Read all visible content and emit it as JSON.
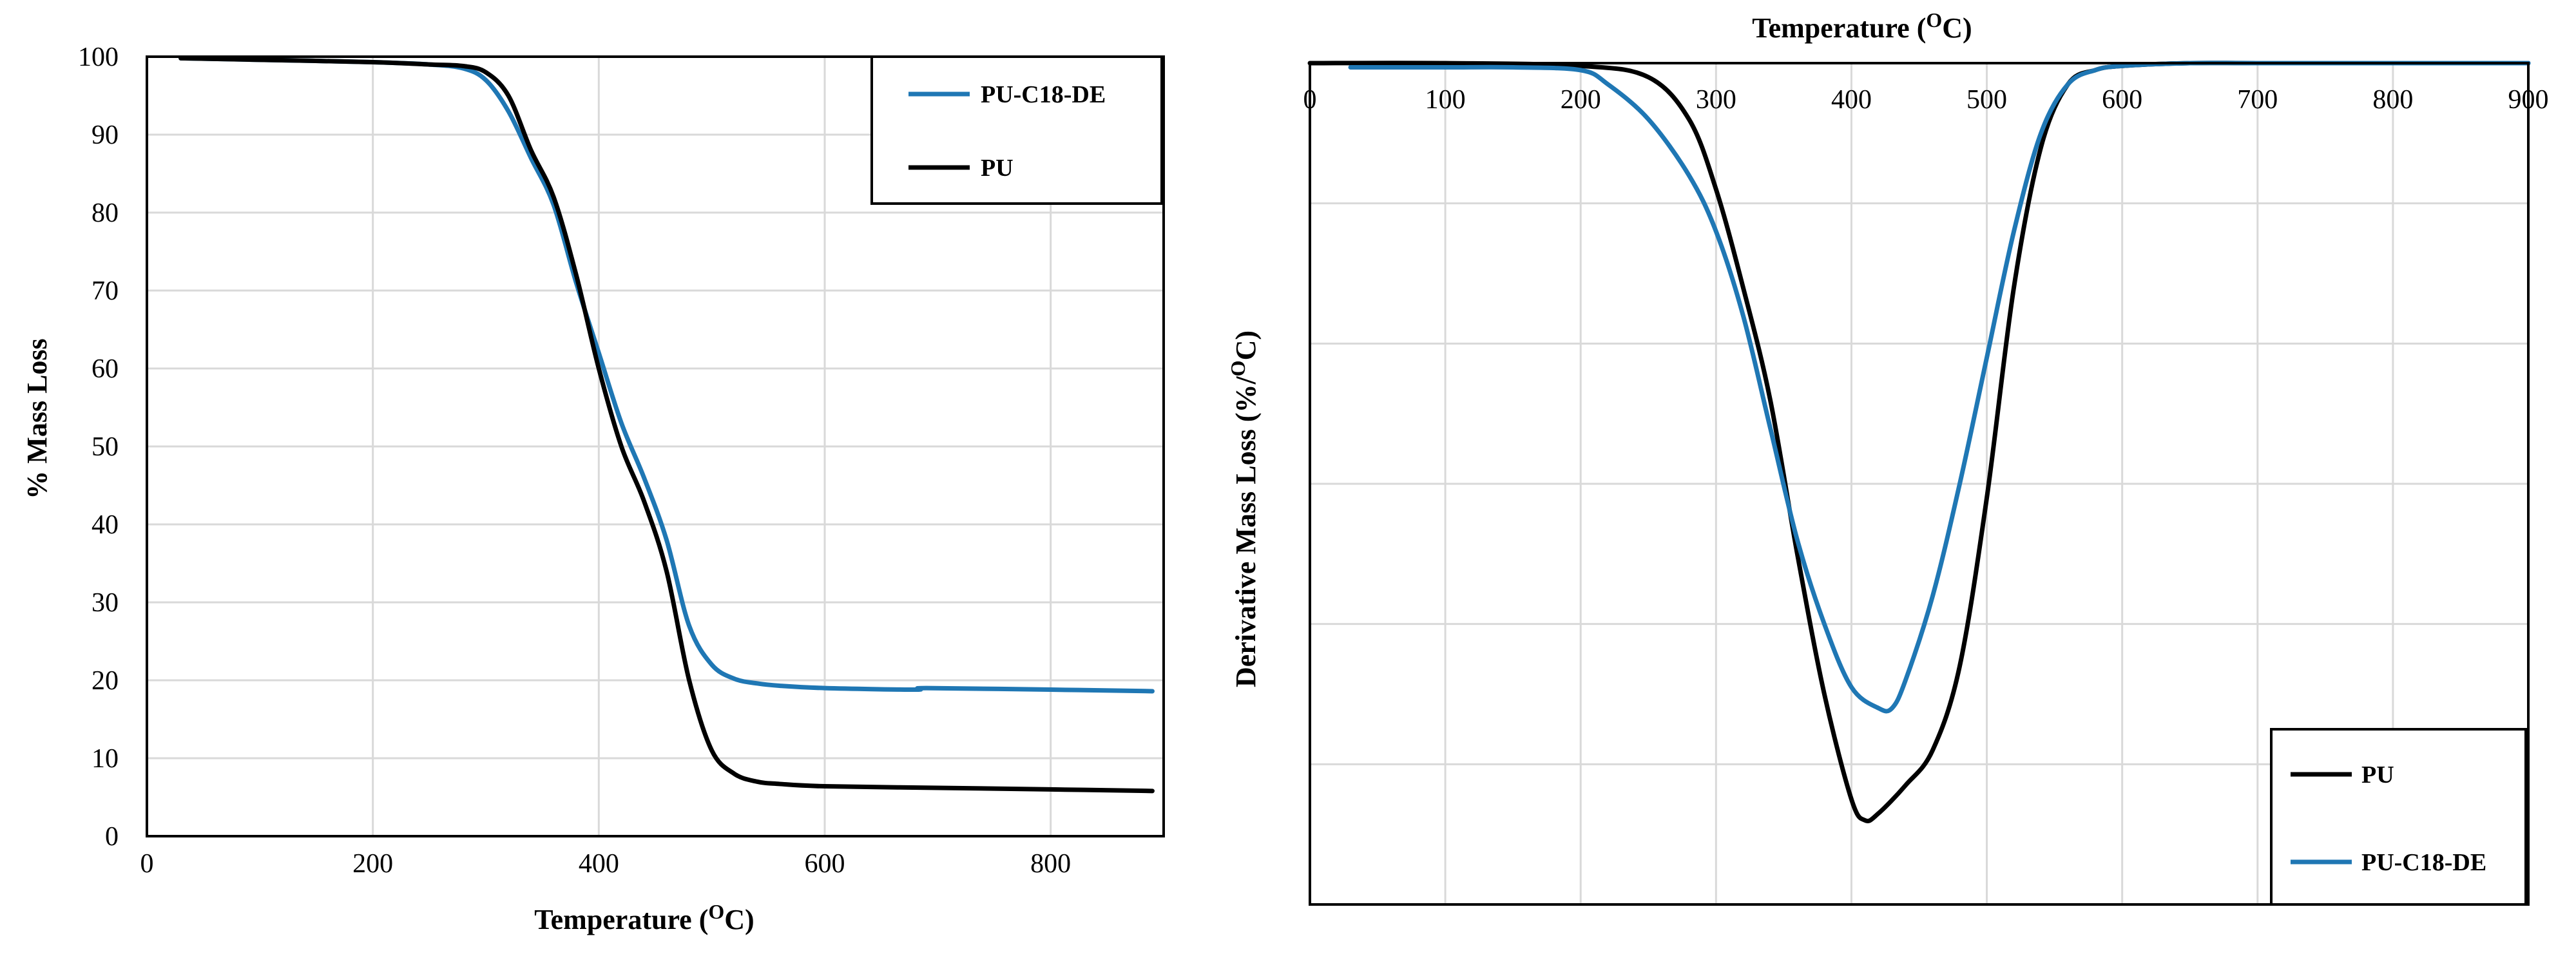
{
  "colors": {
    "pu": "#000000",
    "pu_c18_de": "#1f77b4"
  },
  "chart_data": [
    {
      "type": "line",
      "title": "",
      "xlabel": "Temperature (",
      "xlabel_sup": "O",
      "xlabel_end": "C)",
      "ylabel": "% Mass Loss",
      "xlim": [
        0,
        900
      ],
      "ylim": [
        0,
        100
      ],
      "xticks": [
        0,
        200,
        400,
        600,
        800
      ],
      "yticks": [
        0,
        10,
        20,
        30,
        40,
        50,
        60,
        70,
        80,
        90,
        100
      ],
      "grid": true,
      "legend_position": "top-right",
      "series": [
        {
          "name": "PU-C18-DE",
          "color": "#1f77b4",
          "x": [
            30,
            100,
            200,
            250,
            280,
            300,
            320,
            340,
            360,
            380,
            400,
            420,
            440,
            460,
            480,
            500,
            520,
            540,
            560,
            600,
            680,
            690,
            800,
            890
          ],
          "y": [
            99.8,
            99.6,
            99.3,
            99.0,
            98.5,
            97.0,
            93.0,
            87.0,
            81.0,
            71.0,
            62.0,
            53.0,
            46.0,
            38.0,
            27.0,
            22.0,
            20.2,
            19.6,
            19.3,
            19.0,
            18.8,
            19.0,
            18.8,
            18.6
          ]
        },
        {
          "name": "PU",
          "color": "#000000",
          "x": [
            30,
            100,
            200,
            250,
            280,
            300,
            320,
            340,
            360,
            380,
            400,
            420,
            440,
            460,
            480,
            500,
            520,
            540,
            560,
            600,
            700,
            800,
            890
          ],
          "y": [
            99.8,
            99.6,
            99.3,
            99.0,
            98.8,
            98.0,
            95.0,
            88.0,
            82.0,
            72.0,
            60.0,
            50.0,
            43.0,
            34.0,
            20.0,
            11.0,
            8.0,
            7.0,
            6.7,
            6.4,
            6.2,
            6.0,
            5.8
          ]
        }
      ]
    },
    {
      "type": "line",
      "title": "",
      "xlabel": "Temperature (",
      "xlabel_sup": "O",
      "xlabel_end": "C)",
      "ylabel": "Derivative Mass Loss (%/",
      "ylabel_sup": "O",
      "ylabel_end": "C)",
      "xlim": [
        0,
        900
      ],
      "ylim": [
        -6,
        0
      ],
      "xticks": [
        0,
        100,
        200,
        300,
        400,
        500,
        600,
        700,
        800,
        900
      ],
      "yticks": [
        0,
        -1,
        -2,
        -3,
        -4,
        -5,
        -6
      ],
      "ytick_labels_shown": false,
      "grid": true,
      "legend_position": "bottom-right",
      "series": [
        {
          "name": "PU",
          "color": "#000000",
          "x": [
            0,
            100,
            200,
            250,
            280,
            300,
            320,
            340,
            360,
            380,
            400,
            410,
            420,
            440,
            460,
            480,
            500,
            520,
            540,
            560,
            580,
            600,
            650,
            700,
            800,
            900
          ],
          "y": [
            0,
            0,
            -0.02,
            -0.1,
            -0.4,
            -0.9,
            -1.6,
            -2.4,
            -3.5,
            -4.5,
            -5.25,
            -5.4,
            -5.35,
            -5.15,
            -4.9,
            -4.3,
            -3.1,
            -1.6,
            -0.6,
            -0.15,
            -0.05,
            -0.02,
            0,
            0,
            0,
            0
          ]
        },
        {
          "name": "PU-C18-DE",
          "color": "#1f77b4",
          "x": [
            30,
            100,
            150,
            200,
            220,
            250,
            280,
            300,
            320,
            340,
            360,
            380,
            400,
            420,
            430,
            440,
            460,
            480,
            500,
            520,
            540,
            560,
            580,
            600,
            650,
            700,
            800,
            900
          ],
          "y": [
            -0.03,
            -0.03,
            -0.03,
            -0.05,
            -0.15,
            -0.4,
            -0.8,
            -1.2,
            -1.8,
            -2.6,
            -3.4,
            -4.0,
            -4.45,
            -4.6,
            -4.6,
            -4.4,
            -3.8,
            -3.0,
            -2.1,
            -1.2,
            -0.5,
            -0.15,
            -0.05,
            -0.02,
            0,
            0,
            0,
            0
          ]
        }
      ]
    }
  ]
}
